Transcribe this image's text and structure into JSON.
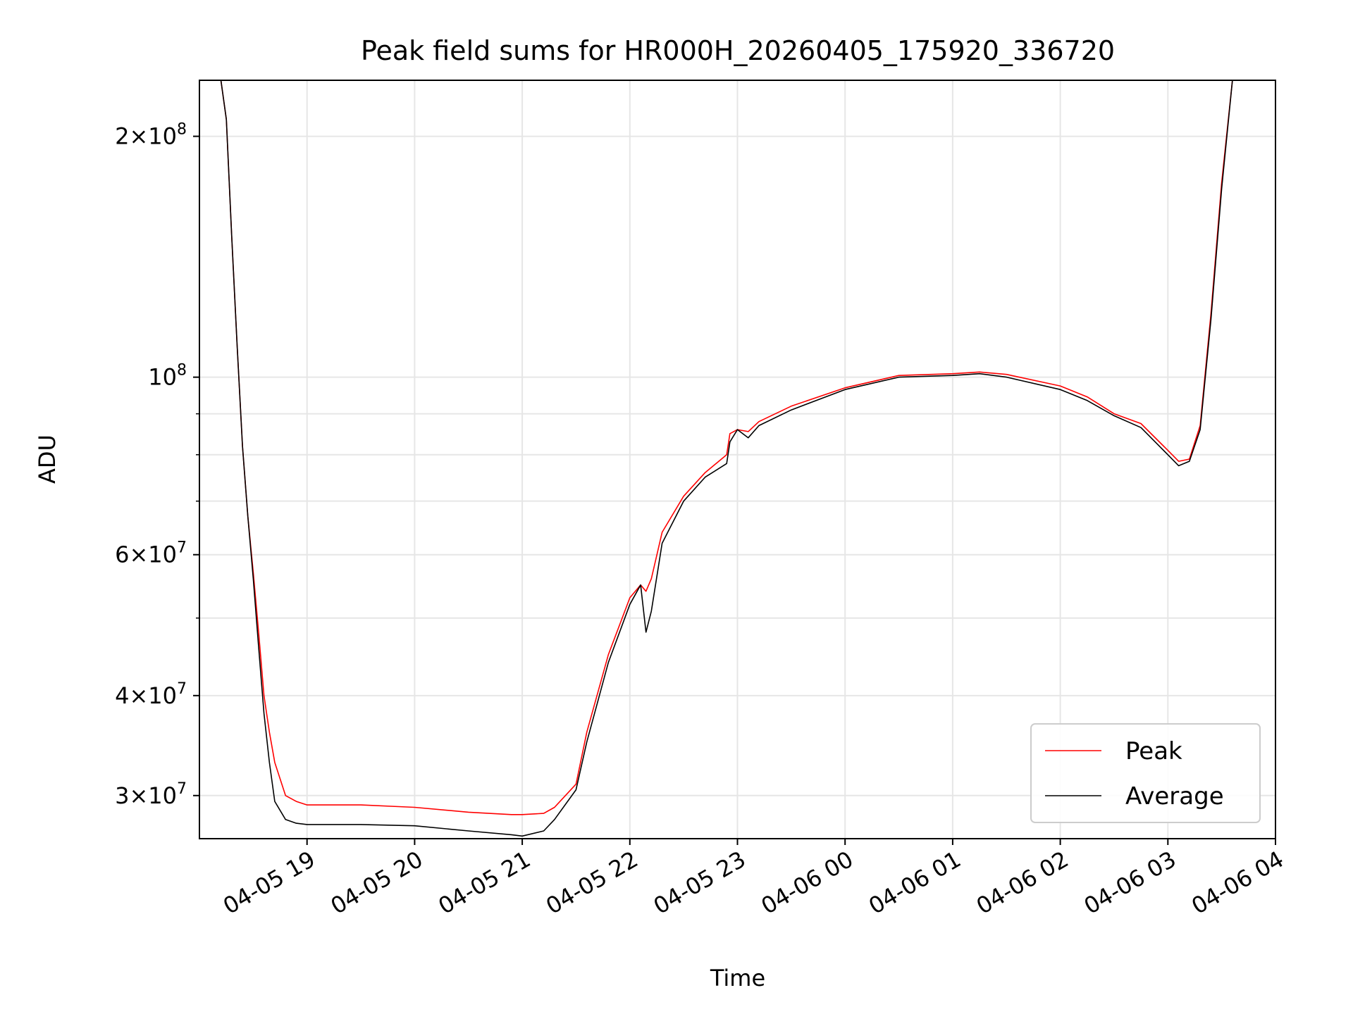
{
  "chart_data": {
    "type": "line",
    "title": "Peak field sums for HR000H_20260405_175920_336720",
    "xlabel": "Time",
    "ylabel": "ADU",
    "yscale": "log",
    "xlim": [
      18.0,
      28.0
    ],
    "ylim": [
      26500000,
      235000000
    ],
    "grid": true,
    "legend_position": "lower-right",
    "x_ticks": [
      {
        "value": 19,
        "label": "04-05 19"
      },
      {
        "value": 20,
        "label": "04-05 20"
      },
      {
        "value": 21,
        "label": "04-05 21"
      },
      {
        "value": 22,
        "label": "04-05 22"
      },
      {
        "value": 23,
        "label": "04-05 23"
      },
      {
        "value": 24,
        "label": "04-06 00"
      },
      {
        "value": 25,
        "label": "04-06 01"
      },
      {
        "value": 26,
        "label": "04-06 02"
      },
      {
        "value": 27,
        "label": "04-06 03"
      },
      {
        "value": 28,
        "label": "04-06 04"
      }
    ],
    "y_ticks": [
      {
        "value": 30000000,
        "base": "3",
        "exp": "7"
      },
      {
        "value": 40000000,
        "base": "4",
        "exp": "7"
      },
      {
        "value": 60000000,
        "base": "6",
        "exp": "7"
      },
      {
        "value": 100000000,
        "base": "",
        "exp": "8"
      },
      {
        "value": 200000000,
        "base": "2",
        "exp": "8"
      }
    ],
    "y_minor_ticks": [
      50000000,
      70000000,
      80000000,
      90000000
    ],
    "series": [
      {
        "name": "Peak",
        "color": "#ff0000",
        "x": [
          18.0,
          18.2,
          18.25,
          18.3,
          18.35,
          18.4,
          18.45,
          18.5,
          18.55,
          18.6,
          18.65,
          18.7,
          18.8,
          18.9,
          19.0,
          19.5,
          20.0,
          20.5,
          20.9,
          21.0,
          21.2,
          21.3,
          21.5,
          21.6,
          21.8,
          22.0,
          22.1,
          22.15,
          22.2,
          22.3,
          22.5,
          22.7,
          22.9,
          22.93,
          23.0,
          23.1,
          23.2,
          23.5,
          24.0,
          24.5,
          25.0,
          25.25,
          25.5,
          26.0,
          26.25,
          26.5,
          26.75,
          27.0,
          27.1,
          27.2,
          27.3,
          27.4,
          27.5,
          27.6,
          27.7,
          27.8,
          28.0
        ],
        "y": [
          235000000,
          235000000,
          210000000,
          150000000,
          110000000,
          82000000,
          67000000,
          57000000,
          48000000,
          40000000,
          36000000,
          33000000,
          30000000,
          29500000,
          29200000,
          29200000,
          29000000,
          28600000,
          28400000,
          28400000,
          28500000,
          29000000,
          31000000,
          36000000,
          45000000,
          53000000,
          55000000,
          54000000,
          56000000,
          64000000,
          71000000,
          76000000,
          80000000,
          85000000,
          86000000,
          85500000,
          88000000,
          92000000,
          97000000,
          100500000,
          101000000,
          101500000,
          100800000,
          97500000,
          94500000,
          90000000,
          87500000,
          81000000,
          78500000,
          79000000,
          87000000,
          120000000,
          175000000,
          235000000,
          235000000,
          235000000,
          235000000
        ]
      },
      {
        "name": "Average",
        "color": "#000000",
        "x": [
          18.0,
          18.2,
          18.25,
          18.3,
          18.35,
          18.4,
          18.45,
          18.5,
          18.55,
          18.6,
          18.65,
          18.7,
          18.8,
          18.9,
          19.0,
          19.5,
          20.0,
          20.5,
          20.9,
          21.0,
          21.2,
          21.3,
          21.5,
          21.6,
          21.8,
          22.0,
          22.1,
          22.15,
          22.2,
          22.3,
          22.5,
          22.7,
          22.9,
          22.93,
          23.0,
          23.1,
          23.2,
          23.5,
          24.0,
          24.5,
          25.0,
          25.25,
          25.5,
          26.0,
          26.25,
          26.5,
          26.75,
          27.0,
          27.1,
          27.2,
          27.3,
          27.4,
          27.5,
          27.6,
          27.7,
          27.8,
          28.0
        ],
        "y": [
          235000000,
          235000000,
          210000000,
          150000000,
          110000000,
          82000000,
          67000000,
          56000000,
          46000000,
          38000000,
          33000000,
          29500000,
          28000000,
          27700000,
          27600000,
          27600000,
          27500000,
          27100000,
          26800000,
          26700000,
          27100000,
          28000000,
          30500000,
          35000000,
          44000000,
          52000000,
          55000000,
          48000000,
          51000000,
          62000000,
          70000000,
          75000000,
          78000000,
          83000000,
          86000000,
          84000000,
          87000000,
          91000000,
          96500000,
          100000000,
          100500000,
          101000000,
          100000000,
          96500000,
          93500000,
          89500000,
          86500000,
          80000000,
          77500000,
          78500000,
          86000000,
          118000000,
          172000000,
          235000000,
          235000000,
          235000000,
          235000000
        ]
      }
    ]
  }
}
